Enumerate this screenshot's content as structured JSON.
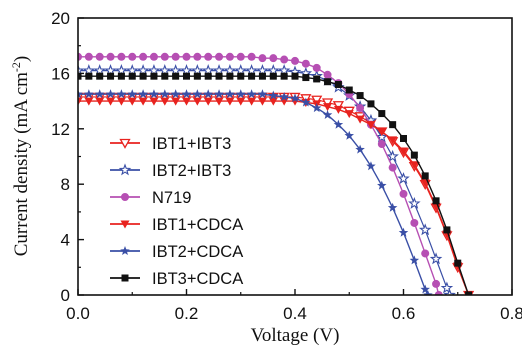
{
  "chart_data": {
    "type": "line",
    "xlabel": "Voltage (V)",
    "ylabel_main": "Current density (mA cm",
    "ylabel_sup": "-2",
    "ylabel_close": ")",
    "xlim": [
      0.0,
      0.8
    ],
    "ylim": [
      0,
      20
    ],
    "xticks": [
      0.0,
      0.2,
      0.4,
      0.6,
      0.8
    ],
    "xtick_labels": [
      "0.0",
      "0.2",
      "0.4",
      "0.6",
      "0.8"
    ],
    "yticks": [
      0,
      4,
      8,
      12,
      16,
      20
    ],
    "ytick_labels": [
      "0",
      "4",
      "8",
      "12",
      "16",
      "20"
    ],
    "grid": false,
    "legend_position": "bottom-left",
    "series": [
      {
        "name": "IBT1+IBT3",
        "color": "#e8231f",
        "marker": "tri-down-open",
        "line_width": 1.2,
        "points": [
          [
            0.0,
            14.3
          ],
          [
            0.02,
            14.3
          ],
          [
            0.04,
            14.3
          ],
          [
            0.06,
            14.3
          ],
          [
            0.08,
            14.3
          ],
          [
            0.1,
            14.3
          ],
          [
            0.12,
            14.3
          ],
          [
            0.14,
            14.3
          ],
          [
            0.16,
            14.3
          ],
          [
            0.18,
            14.3
          ],
          [
            0.2,
            14.3
          ],
          [
            0.22,
            14.3
          ],
          [
            0.24,
            14.3
          ],
          [
            0.26,
            14.3
          ],
          [
            0.28,
            14.3
          ],
          [
            0.3,
            14.3
          ],
          [
            0.32,
            14.3
          ],
          [
            0.34,
            14.3
          ],
          [
            0.36,
            14.3
          ],
          [
            0.38,
            14.3
          ],
          [
            0.4,
            14.3
          ],
          [
            0.42,
            14.2
          ],
          [
            0.44,
            14.1
          ],
          [
            0.46,
            13.9
          ],
          [
            0.48,
            13.7
          ],
          [
            0.5,
            13.3
          ],
          [
            0.52,
            12.9
          ],
          [
            0.54,
            12.4
          ],
          [
            0.56,
            11.8
          ],
          [
            0.58,
            11.1
          ],
          [
            0.6,
            10.3
          ],
          [
            0.62,
            9.3
          ],
          [
            0.64,
            8.0
          ],
          [
            0.66,
            6.3
          ],
          [
            0.68,
            4.3
          ],
          [
            0.7,
            2.0
          ],
          [
            0.72,
            0.0
          ]
        ]
      },
      {
        "name": "IBT2+IBT3",
        "color": "#3a4fa6",
        "marker": "star-open",
        "line_width": 1.2,
        "points": [
          [
            0.0,
            16.2
          ],
          [
            0.02,
            16.2
          ],
          [
            0.04,
            16.2
          ],
          [
            0.06,
            16.2
          ],
          [
            0.08,
            16.2
          ],
          [
            0.1,
            16.2
          ],
          [
            0.12,
            16.2
          ],
          [
            0.14,
            16.2
          ],
          [
            0.16,
            16.2
          ],
          [
            0.18,
            16.2
          ],
          [
            0.2,
            16.2
          ],
          [
            0.22,
            16.2
          ],
          [
            0.24,
            16.2
          ],
          [
            0.26,
            16.2
          ],
          [
            0.28,
            16.2
          ],
          [
            0.3,
            16.2
          ],
          [
            0.32,
            16.2
          ],
          [
            0.34,
            16.2
          ],
          [
            0.36,
            16.2
          ],
          [
            0.38,
            16.2
          ],
          [
            0.4,
            16.1
          ],
          [
            0.42,
            16.0
          ],
          [
            0.44,
            15.8
          ],
          [
            0.46,
            15.5
          ],
          [
            0.48,
            15.0
          ],
          [
            0.5,
            14.4
          ],
          [
            0.52,
            13.6
          ],
          [
            0.54,
            12.6
          ],
          [
            0.56,
            11.4
          ],
          [
            0.58,
            10.0
          ],
          [
            0.6,
            8.4
          ],
          [
            0.62,
            6.6
          ],
          [
            0.64,
            4.7
          ],
          [
            0.66,
            2.6
          ],
          [
            0.68,
            0.5
          ],
          [
            0.685,
            0.0
          ]
        ]
      },
      {
        "name": "N719",
        "color": "#b64fb3",
        "marker": "circle",
        "line_width": 1.4,
        "points": [
          [
            0.0,
            17.2
          ],
          [
            0.02,
            17.2
          ],
          [
            0.04,
            17.2
          ],
          [
            0.06,
            17.2
          ],
          [
            0.08,
            17.2
          ],
          [
            0.1,
            17.2
          ],
          [
            0.12,
            17.2
          ],
          [
            0.14,
            17.2
          ],
          [
            0.16,
            17.2
          ],
          [
            0.18,
            17.2
          ],
          [
            0.2,
            17.2
          ],
          [
            0.22,
            17.2
          ],
          [
            0.24,
            17.2
          ],
          [
            0.26,
            17.2
          ],
          [
            0.28,
            17.2
          ],
          [
            0.3,
            17.2
          ],
          [
            0.32,
            17.2
          ],
          [
            0.34,
            17.1
          ],
          [
            0.36,
            17.1
          ],
          [
            0.38,
            17.0
          ],
          [
            0.4,
            16.9
          ],
          [
            0.42,
            16.7
          ],
          [
            0.44,
            16.4
          ],
          [
            0.46,
            15.9
          ],
          [
            0.48,
            15.3
          ],
          [
            0.5,
            14.5
          ],
          [
            0.52,
            13.5
          ],
          [
            0.54,
            12.3
          ],
          [
            0.56,
            10.9
          ],
          [
            0.58,
            9.2
          ],
          [
            0.6,
            7.3
          ],
          [
            0.62,
            5.2
          ],
          [
            0.64,
            3.0
          ],
          [
            0.66,
            0.8
          ],
          [
            0.665,
            0.0
          ]
        ]
      },
      {
        "name": "IBT1+CDCA",
        "color": "#e8231f",
        "marker": "tri-down",
        "line_width": 1.4,
        "points": [
          [
            0.0,
            14.0
          ],
          [
            0.02,
            14.0
          ],
          [
            0.04,
            14.0
          ],
          [
            0.06,
            14.0
          ],
          [
            0.08,
            14.0
          ],
          [
            0.1,
            14.0
          ],
          [
            0.12,
            14.0
          ],
          [
            0.14,
            14.0
          ],
          [
            0.16,
            14.0
          ],
          [
            0.18,
            14.0
          ],
          [
            0.2,
            14.0
          ],
          [
            0.22,
            14.0
          ],
          [
            0.24,
            14.0
          ],
          [
            0.26,
            14.0
          ],
          [
            0.28,
            14.0
          ],
          [
            0.3,
            14.0
          ],
          [
            0.32,
            14.0
          ],
          [
            0.34,
            14.0
          ],
          [
            0.36,
            14.0
          ],
          [
            0.38,
            14.0
          ],
          [
            0.4,
            14.0
          ],
          [
            0.42,
            13.9
          ],
          [
            0.44,
            13.8
          ],
          [
            0.46,
            13.6
          ],
          [
            0.48,
            13.4
          ],
          [
            0.5,
            13.1
          ],
          [
            0.52,
            12.7
          ],
          [
            0.54,
            12.3
          ],
          [
            0.56,
            11.8
          ],
          [
            0.58,
            11.2
          ],
          [
            0.6,
            10.4
          ],
          [
            0.62,
            9.4
          ],
          [
            0.64,
            8.1
          ],
          [
            0.66,
            6.4
          ],
          [
            0.68,
            4.4
          ],
          [
            0.7,
            2.1
          ],
          [
            0.72,
            0.0
          ]
        ]
      },
      {
        "name": "IBT2+CDCA",
        "color": "#3a4fa6",
        "marker": "star",
        "line_width": 1.4,
        "points": [
          [
            0.0,
            14.5
          ],
          [
            0.02,
            14.5
          ],
          [
            0.04,
            14.5
          ],
          [
            0.06,
            14.5
          ],
          [
            0.08,
            14.5
          ],
          [
            0.1,
            14.5
          ],
          [
            0.12,
            14.5
          ],
          [
            0.14,
            14.5
          ],
          [
            0.16,
            14.5
          ],
          [
            0.18,
            14.5
          ],
          [
            0.2,
            14.5
          ],
          [
            0.22,
            14.5
          ],
          [
            0.24,
            14.5
          ],
          [
            0.26,
            14.5
          ],
          [
            0.28,
            14.5
          ],
          [
            0.3,
            14.5
          ],
          [
            0.32,
            14.5
          ],
          [
            0.34,
            14.5
          ],
          [
            0.36,
            14.4
          ],
          [
            0.38,
            14.3
          ],
          [
            0.4,
            14.2
          ],
          [
            0.42,
            13.9
          ],
          [
            0.44,
            13.5
          ],
          [
            0.46,
            13.0
          ],
          [
            0.48,
            12.3
          ],
          [
            0.5,
            11.5
          ],
          [
            0.52,
            10.5
          ],
          [
            0.54,
            9.3
          ],
          [
            0.56,
            7.9
          ],
          [
            0.58,
            6.3
          ],
          [
            0.6,
            4.5
          ],
          [
            0.62,
            2.5
          ],
          [
            0.64,
            0.4
          ],
          [
            0.645,
            0.0
          ]
        ]
      },
      {
        "name": "IBT3+CDCA",
        "color": "#111111",
        "marker": "square",
        "line_width": 1.4,
        "points": [
          [
            0.0,
            15.8
          ],
          [
            0.02,
            15.8
          ],
          [
            0.04,
            15.8
          ],
          [
            0.06,
            15.8
          ],
          [
            0.08,
            15.8
          ],
          [
            0.1,
            15.8
          ],
          [
            0.12,
            15.8
          ],
          [
            0.14,
            15.8
          ],
          [
            0.16,
            15.8
          ],
          [
            0.18,
            15.8
          ],
          [
            0.2,
            15.8
          ],
          [
            0.22,
            15.8
          ],
          [
            0.24,
            15.8
          ],
          [
            0.26,
            15.8
          ],
          [
            0.28,
            15.8
          ],
          [
            0.3,
            15.8
          ],
          [
            0.32,
            15.8
          ],
          [
            0.34,
            15.8
          ],
          [
            0.36,
            15.8
          ],
          [
            0.38,
            15.8
          ],
          [
            0.4,
            15.8
          ],
          [
            0.42,
            15.7
          ],
          [
            0.44,
            15.6
          ],
          [
            0.46,
            15.4
          ],
          [
            0.48,
            15.2
          ],
          [
            0.5,
            14.8
          ],
          [
            0.52,
            14.4
          ],
          [
            0.54,
            13.8
          ],
          [
            0.56,
            13.1
          ],
          [
            0.58,
            12.3
          ],
          [
            0.6,
            11.3
          ],
          [
            0.62,
            10.1
          ],
          [
            0.64,
            8.6
          ],
          [
            0.66,
            6.8
          ],
          [
            0.68,
            4.7
          ],
          [
            0.7,
            2.3
          ],
          [
            0.72,
            0.0
          ]
        ]
      }
    ]
  }
}
